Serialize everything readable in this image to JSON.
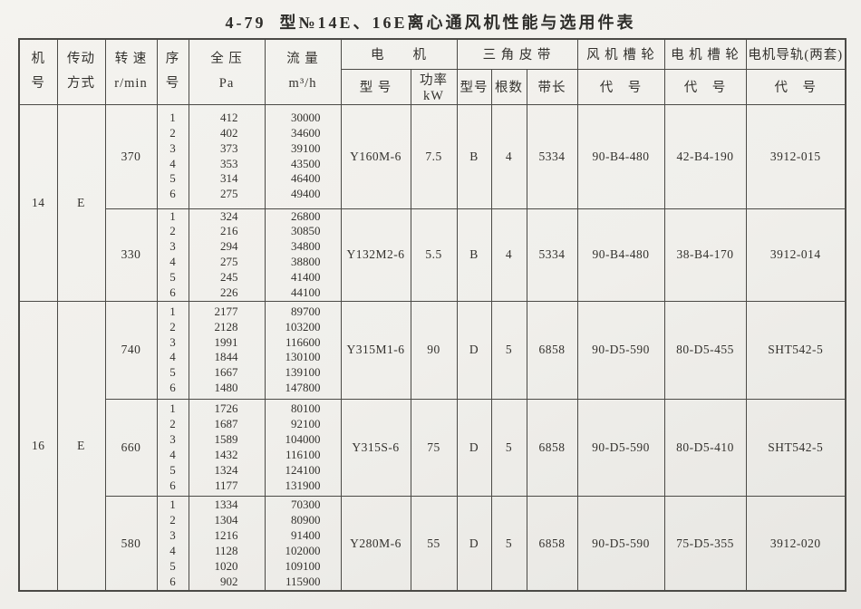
{
  "page": {
    "title": "4-79  型№14E、16E离心通风机性能与选用件表"
  },
  "header": {
    "machine_no": {
      "line1": "机",
      "line2": "号"
    },
    "drive_mode": {
      "line1": "传动",
      "line2": "方式"
    },
    "speed": {
      "line1": "转 速",
      "line2": "r/min"
    },
    "seq": {
      "line1": "序",
      "line2": "号"
    },
    "pressure": {
      "line1": "全  压",
      "line2": "Pa"
    },
    "flow": {
      "line1": "流  量",
      "line2": "m³/h"
    },
    "motor_group": "电　　机",
    "motor_model": "型 号",
    "motor_power": "功率 kW",
    "belt_group": "三 角 皮 带",
    "belt_model": "型号",
    "belt_count": "根数",
    "belt_length": "带长",
    "fan_pulley_group": "风 机 槽 轮",
    "fan_pulley_code": "代　号",
    "motor_pulley_group": "电 机 槽 轮",
    "motor_pulley_code": "代　号",
    "rail_group": "电机导轨(两套)",
    "rail_code": "代　号"
  },
  "groups": [
    {
      "machine_no": "14",
      "drive": "E",
      "blocks": [
        {
          "rpm": "370",
          "seq": [
            "1",
            "2",
            "3",
            "4",
            "5",
            "6"
          ],
          "pressure": [
            "412",
            "402",
            "373",
            "353",
            "314",
            "275"
          ],
          "flow": [
            "30000",
            "34600",
            "39100",
            "43500",
            "46400",
            "49400"
          ],
          "motor_model": "Y160M-6",
          "motor_power": "7.5",
          "belt_model": "B",
          "belt_count": "4",
          "belt_length": "5334",
          "fan_pulley": "90-B4-480",
          "motor_pulley": "42-B4-190",
          "rail": "3912-015"
        },
        {
          "rpm": "330",
          "seq": [
            "1",
            "2",
            "3",
            "4",
            "5",
            "6"
          ],
          "pressure": [
            "324",
            "216",
            "294",
            "275",
            "245",
            "226"
          ],
          "flow": [
            "26800",
            "30850",
            "34800",
            "38800",
            "41400",
            "44100"
          ],
          "motor_model": "Y132M2-6",
          "motor_power": "5.5",
          "belt_model": "B",
          "belt_count": "4",
          "belt_length": "5334",
          "fan_pulley": "90-B4-480",
          "motor_pulley": "38-B4-170",
          "rail": "3912-014"
        }
      ]
    },
    {
      "machine_no": "16",
      "drive": "E",
      "blocks": [
        {
          "rpm": "740",
          "seq": [
            "1",
            "2",
            "3",
            "4",
            "5",
            "6"
          ],
          "pressure": [
            "2177",
            "2128",
            "1991",
            "1844",
            "1667",
            "1480"
          ],
          "flow": [
            "89700",
            "103200",
            "116600",
            "130100",
            "139100",
            "147800"
          ],
          "motor_model": "Y315M1-6",
          "motor_power": "90",
          "belt_model": "D",
          "belt_count": "5",
          "belt_length": "6858",
          "fan_pulley": "90-D5-590",
          "motor_pulley": "80-D5-455",
          "rail": "SHT542-5"
        },
        {
          "rpm": "660",
          "seq": [
            "1",
            "2",
            "3",
            "4",
            "5",
            "6"
          ],
          "pressure": [
            "1726",
            "1687",
            "1589",
            "1432",
            "1324",
            "1177"
          ],
          "flow": [
            "80100",
            "92100",
            "104000",
            "116100",
            "124100",
            "131900"
          ],
          "motor_model": "Y315S-6",
          "motor_power": "75",
          "belt_model": "D",
          "belt_count": "5",
          "belt_length": "6858",
          "fan_pulley": "90-D5-590",
          "motor_pulley": "80-D5-410",
          "rail": "SHT542-5"
        },
        {
          "rpm": "580",
          "seq": [
            "1",
            "2",
            "3",
            "4",
            "5",
            "6"
          ],
          "pressure": [
            "1334",
            "1304",
            "1216",
            "1128",
            "1020",
            "902"
          ],
          "flow": [
            "70300",
            "80900",
            "91400",
            "102000",
            "109100",
            "115900"
          ],
          "motor_model": "Y280M-6",
          "motor_power": "55",
          "belt_model": "D",
          "belt_count": "5",
          "belt_length": "6858",
          "fan_pulley": "90-D5-590",
          "motor_pulley": "75-D5-355",
          "rail": "3912-020"
        }
      ]
    }
  ]
}
